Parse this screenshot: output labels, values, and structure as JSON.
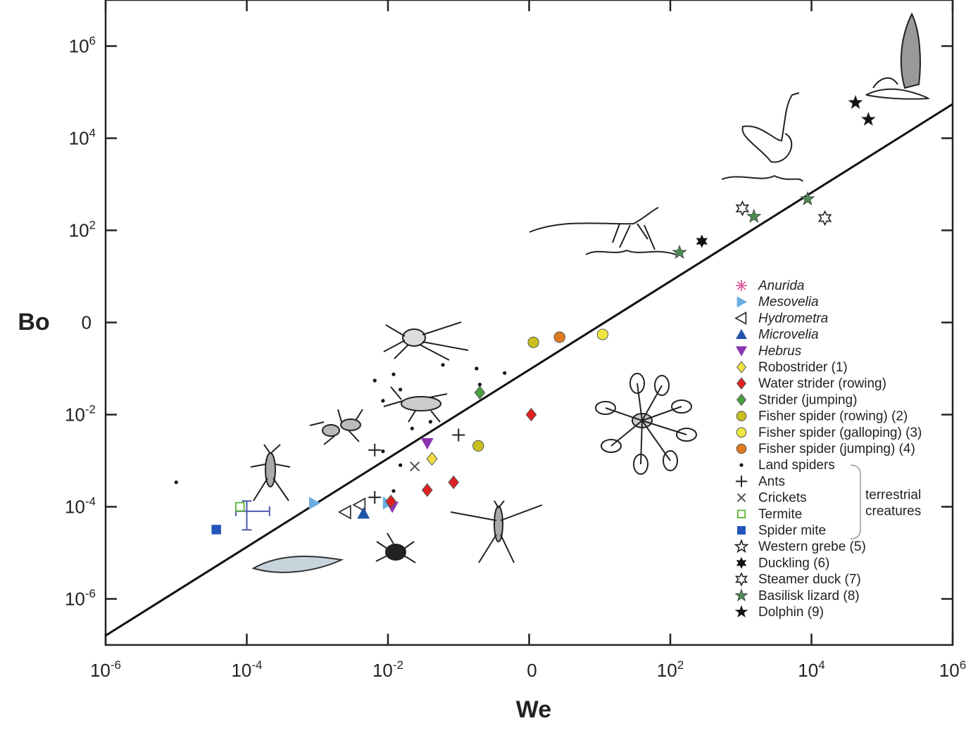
{
  "chart_data": {
    "type": "scatter",
    "title": "",
    "xlabel": "We",
    "ylabel": "Bo",
    "x_scale": "log",
    "y_scale": "log",
    "xlim": [
      1e-06,
      1000000.0
    ],
    "ylim": [
      1e-07,
      10000000.0
    ],
    "grid": false,
    "legend_position": "right",
    "x_ticks": [
      {
        "value": 1e-06,
        "base": "10",
        "exp": "-6"
      },
      {
        "value": 0.0001,
        "base": "10",
        "exp": "-4"
      },
      {
        "value": 0.01,
        "base": "10",
        "exp": "-2"
      },
      {
        "value": 1,
        "base": "0",
        "exp": ""
      },
      {
        "value": 100.0,
        "base": "10",
        "exp": "2"
      },
      {
        "value": 10000.0,
        "base": "10",
        "exp": "4"
      },
      {
        "value": 1000000.0,
        "base": "10",
        "exp": "6"
      }
    ],
    "y_ticks": [
      {
        "value": 1000000.0,
        "base": "10",
        "exp": "6"
      },
      {
        "value": 10000.0,
        "base": "10",
        "exp": "4"
      },
      {
        "value": 100.0,
        "base": "10",
        "exp": "2"
      },
      {
        "value": 1,
        "base": "0",
        "exp": ""
      },
      {
        "value": 0.01,
        "base": "10",
        "exp": "-2"
      },
      {
        "value": 0.0001,
        "base": "10",
        "exp": "-4"
      },
      {
        "value": 1e-06,
        "base": "10",
        "exp": "-6"
      }
    ],
    "fit_line": {
      "x": [
        1e-06,
        1000000.0
      ],
      "y": [
        1.6e-07,
        55000.0
      ]
    },
    "series": [
      {
        "name": "Anurida",
        "italic": true,
        "marker": "asterisk",
        "color": "#e060a0",
        "points": []
      },
      {
        "name": "Mesovelia",
        "italic": true,
        "marker": "triangle-right",
        "color": "#6aaee0",
        "points": [
          [
            0.0009,
            0.00012
          ],
          [
            0.01,
            0.00012
          ]
        ]
      },
      {
        "name": "Hydrometra",
        "italic": true,
        "marker": "triangle-left-open",
        "color": "#333333",
        "points": [
          [
            0.0025,
            7.67e-05
          ],
          [
            0.004,
            0.00011
          ]
        ]
      },
      {
        "name": "Microvelia",
        "italic": true,
        "marker": "triangle-up",
        "color": "#2255aa",
        "points": [
          [
            0.0045,
            7.12e-05
          ]
        ]
      },
      {
        "name": "Hebrus",
        "italic": true,
        "marker": "triangle-down",
        "color": "#8a35b0",
        "points": [
          [
            0.0115,
            0.0001
          ],
          [
            0.036,
            0.0024
          ]
        ]
      },
      {
        "name": "Robostrider (1)",
        "italic": false,
        "marker": "diamond",
        "color": "#f0e040",
        "points": [
          [
            0.042,
            0.0011
          ]
        ]
      },
      {
        "name": "Water strider (rowing)",
        "italic": false,
        "marker": "diamond",
        "color": "#e02020",
        "points": [
          [
            0.011,
            0.00013
          ],
          [
            0.036,
            0.00023
          ],
          [
            0.085,
            0.00034
          ],
          [
            1.07,
            0.01
          ]
        ]
      },
      {
        "name": "Strider (jumping)",
        "italic": false,
        "marker": "diamond",
        "color": "#4aa040",
        "points": [
          [
            0.2,
            0.03
          ]
        ]
      },
      {
        "name": "Fisher spider (rowing) (2)",
        "italic": false,
        "marker": "circle",
        "color": "#c8c020",
        "points": [
          [
            0.19,
            0.0021
          ],
          [
            1.15,
            0.37
          ]
        ]
      },
      {
        "name": "Fisher spider (galloping) (3)",
        "italic": false,
        "marker": "circle",
        "color": "#f0e840",
        "points": [
          [
            11,
            0.55
          ]
        ]
      },
      {
        "name": "Fisher spider (jumping) (4)",
        "italic": false,
        "marker": "circle",
        "color": "#e07a20",
        "points": [
          [
            2.7,
            0.48
          ]
        ]
      },
      {
        "name": "Land spiders",
        "italic": false,
        "marker": "dot",
        "color": "#111111",
        "points": [
          [
            1e-05,
            0.00034
          ],
          [
            0.0065,
            0.055
          ],
          [
            0.012,
            0.075
          ],
          [
            0.06,
            0.12
          ],
          [
            0.18,
            0.1
          ],
          [
            0.45,
            0.08
          ],
          [
            0.015,
            0.035
          ],
          [
            0.0085,
            0.02
          ],
          [
            0.0085,
            0.0016
          ],
          [
            0.04,
            0.007
          ],
          [
            0.022,
            0.005
          ],
          [
            0.015,
            0.0008
          ],
          [
            0.012,
            0.00022
          ],
          [
            0.2,
            0.045
          ]
        ]
      },
      {
        "name": "Ants",
        "italic": false,
        "marker": "plus",
        "color": "#222222",
        "points": [
          [
            0.0065,
            0.0017
          ],
          [
            0.0065,
            0.00016
          ],
          [
            0.1,
            0.0036
          ]
        ]
      },
      {
        "name": "Crickets",
        "italic": false,
        "marker": "cross",
        "color": "#555555",
        "points": [
          [
            0.024,
            0.00075
          ]
        ]
      },
      {
        "name": "Termite",
        "italic": false,
        "marker": "square-open",
        "color": "#66bb44",
        "points": [
          [
            8e-05,
            0.0001
          ]
        ]
      },
      {
        "name": "Spider mite",
        "italic": false,
        "marker": "square",
        "color": "#2255bb",
        "points": [
          [
            3.7e-05,
            3.2e-05
          ]
        ]
      },
      {
        "name": "Western grebe (5)",
        "italic": false,
        "marker": "star-open",
        "color": "#222222",
        "points": []
      },
      {
        "name": "Duckling (6)",
        "italic": false,
        "marker": "star6",
        "color": "#111111",
        "points": [
          [
            280,
            58
          ]
        ]
      },
      {
        "name": "Steamer duck (7)",
        "italic": false,
        "marker": "star6-open",
        "color": "#222222",
        "points": [
          [
            1050,
            300
          ],
          [
            15500,
            185
          ]
        ]
      },
      {
        "name": "Basilisk lizard (8)",
        "italic": false,
        "marker": "star",
        "color": "#4e8a55",
        "points": [
          [
            135,
            33
          ],
          [
            1530,
            200
          ],
          [
            8800,
            480
          ]
        ]
      },
      {
        "name": "Dolphin (9)",
        "italic": false,
        "marker": "star",
        "color": "#111111",
        "points": [
          [
            42000,
            59000
          ],
          [
            64000,
            25500
          ]
        ]
      }
    ],
    "error_bar": {
      "x": 0.0001,
      "y": 8e-05,
      "x_range": [
        7e-05,
        0.00021
      ],
      "y_range": [
        3.15e-05,
        0.000133
      ],
      "color": "#4a5aaa"
    },
    "legend_group_label": [
      "terrestrial",
      "creatures"
    ]
  }
}
